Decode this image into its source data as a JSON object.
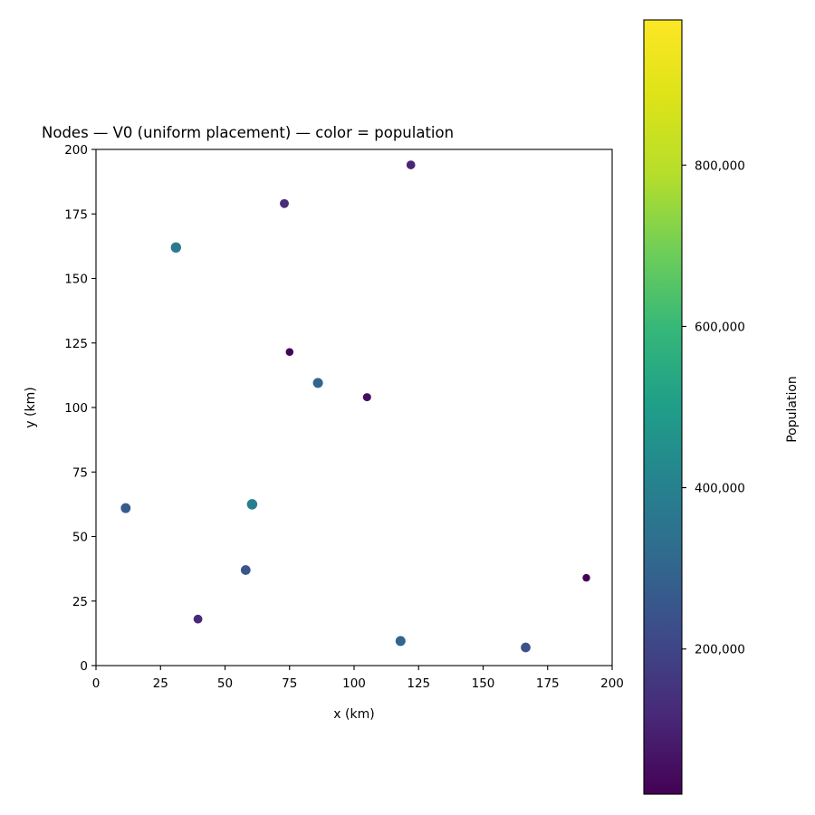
{
  "chart_data": {
    "type": "scatter",
    "title": "Nodes — V0 (uniform placement) — color = population",
    "xlabel": "x (km)",
    "ylabel": "y (km)",
    "xlim": [
      0,
      200
    ],
    "ylim": [
      0,
      200
    ],
    "xticks": [
      0,
      25,
      50,
      75,
      100,
      125,
      150,
      175,
      200
    ],
    "yticks": [
      0,
      25,
      50,
      75,
      100,
      125,
      150,
      175,
      200
    ],
    "grid": false,
    "legend": "none",
    "points": [
      {
        "x": 122,
        "y": 194,
        "population": 110000
      },
      {
        "x": 73,
        "y": 179,
        "population": 130000
      },
      {
        "x": 31,
        "y": 162,
        "population": 370000
      },
      {
        "x": 75,
        "y": 121.5,
        "population": 30000
      },
      {
        "x": 86,
        "y": 109.5,
        "population": 300000
      },
      {
        "x": 105,
        "y": 104,
        "population": 55000
      },
      {
        "x": 11.5,
        "y": 61,
        "population": 270000
      },
      {
        "x": 60.5,
        "y": 62.5,
        "population": 390000
      },
      {
        "x": 58,
        "y": 37,
        "population": 250000
      },
      {
        "x": 190,
        "y": 34,
        "population": 25000
      },
      {
        "x": 39.5,
        "y": 18,
        "population": 120000
      },
      {
        "x": 118,
        "y": 9.5,
        "population": 300000
      },
      {
        "x": 166.5,
        "y": 7,
        "population": 240000
      }
    ],
    "colorbar": {
      "label": "Population",
      "colormap": "viridis",
      "range": [
        20000,
        980000
      ],
      "ticks": [
        200000,
        400000,
        600000,
        800000
      ],
      "tick_labels": [
        "200,000",
        "400,000",
        "600,000",
        "800,000"
      ]
    }
  }
}
